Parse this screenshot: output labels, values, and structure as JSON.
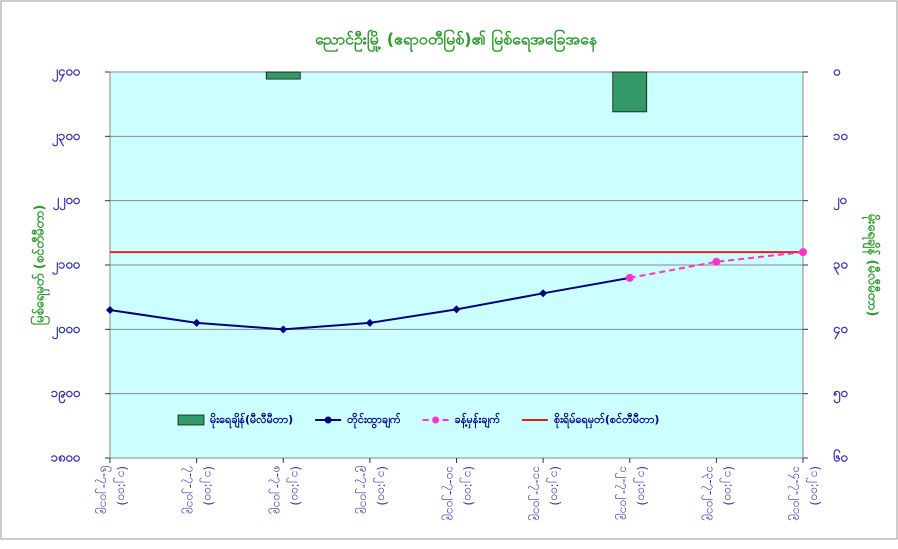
{
  "chart_data": {
    "type": "combo",
    "title": "ညောင်ဦးမြို့ (ဧရာဝတီမြစ်)၏ မြစ်ရေအခြေအနေ",
    "y_label": "မြစ်ရေမှတ် (စင်တီမီတာ)",
    "y2_label": "မိုးရေချိန် (မီလီမီတာ)",
    "categories": [
      "၆-၇-၂၀၁၉",
      "၇-၇-၂၀၁၉",
      "၈-၇-၂၀၁၉",
      "၉-၇-၂၀၁၉",
      "၁၀-၇-၂၀၁၉",
      "၁၁-၇-၂၀၁၉",
      "၁၂-၇-၂၀၁၉",
      "၁၃-၇-၂၀၁၉",
      "၁၄-၇-၂၀၁၉"
    ],
    "category_sublabels": [
      "(၁၂:၀၀)",
      "(၁၂:၀၀)",
      "(၁၂:၀၀)",
      "(၁၂:၀၀)",
      "(၁၂:၀၀)",
      "(၁၂:၀၀)",
      "(၁၂:၀၀)",
      "(၁၂:၀၀)",
      "(၁၂:၀၀)"
    ],
    "ylim": [
      1800,
      2400
    ],
    "yticks": [
      {
        "value": 1800,
        "label": "၁၈၀၀"
      },
      {
        "value": 1900,
        "label": "၁၉၀၀"
      },
      {
        "value": 2000,
        "label": "၂၀၀၀"
      },
      {
        "value": 2100,
        "label": "၂၁၀၀"
      },
      {
        "value": 2200,
        "label": "၂၂၀၀"
      },
      {
        "value": 2300,
        "label": "၂၃၀၀"
      },
      {
        "value": 2400,
        "label": "၂၄၀၀"
      }
    ],
    "y2lim": [
      0,
      60
    ],
    "y2_inverted": true,
    "y2ticks": [
      {
        "value": 0,
        "label": "၀"
      },
      {
        "value": 10,
        "label": "၁၀"
      },
      {
        "value": 20,
        "label": "၂၀"
      },
      {
        "value": 30,
        "label": "၃၀"
      },
      {
        "value": 40,
        "label": "၄၀"
      },
      {
        "value": 50,
        "label": "၅၀"
      },
      {
        "value": 60,
        "label": "၆၀"
      }
    ],
    "grid": true,
    "series": [
      {
        "name": "မိုးရေချိန်(မီလီမီတာ)",
        "kind": "bar",
        "axis": "y2",
        "color": "#339966",
        "values": [
          0,
          0,
          1.1,
          0,
          0,
          0,
          6.2,
          null,
          null
        ]
      },
      {
        "name": "တိုင်းထွာချက်",
        "kind": "line",
        "marker": "diamond",
        "color": "#000080",
        "values": [
          2030,
          2010,
          2000,
          2010,
          2031,
          2056,
          2080,
          null,
          null
        ]
      },
      {
        "name": "ခန့်မှန်းချက်",
        "kind": "line",
        "marker": "circle",
        "dashed": true,
        "color": "#ff33cc",
        "values": [
          null,
          null,
          null,
          null,
          null,
          null,
          2080,
          2105,
          2120
        ]
      }
    ],
    "threshold": {
      "name": "စိုးရိမ်ရေမှတ်(စင်တီမီတာ)",
      "value": 2120,
      "color": "#e02020"
    }
  }
}
